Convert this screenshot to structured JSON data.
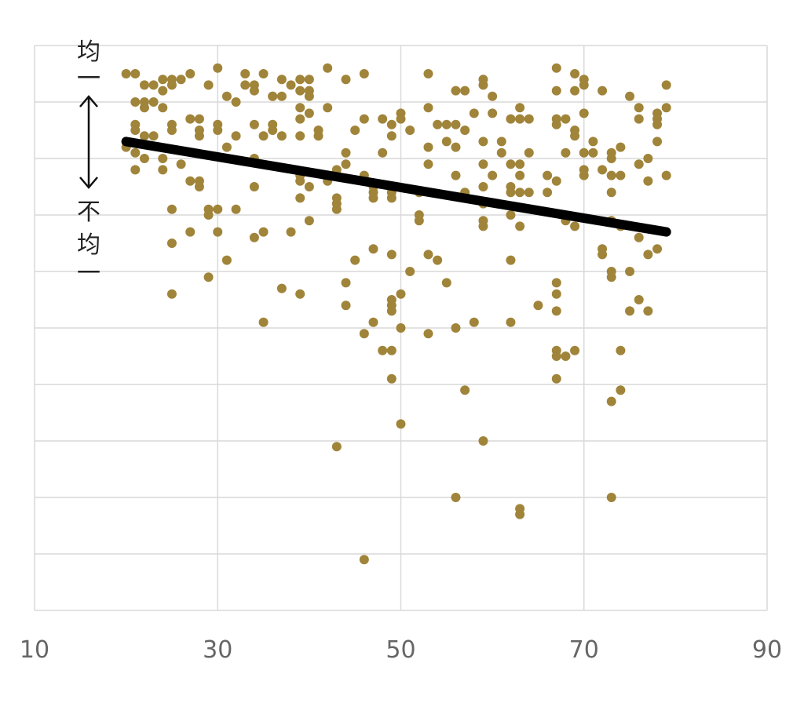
{
  "chart_data": {
    "type": "scatter",
    "title": "",
    "xlabel": "",
    "ylabel": "",
    "xlim": [
      10,
      90
    ],
    "ylim": [
      0,
      10
    ],
    "xticks": [
      "10",
      "30",
      "50",
      "70",
      "90"
    ],
    "grid": true,
    "y_annotation": {
      "top": "均一",
      "bottom": "不均一"
    },
    "colors": {
      "points": "#a0843a",
      "trendline": "#000000",
      "grid": "#d9d9d9",
      "tick_text": "#666666"
    },
    "trendline": {
      "x": [
        20,
        79
      ],
      "y": [
        8.3,
        6.7
      ]
    },
    "points": [
      [
        20,
        9.5
      ],
      [
        21,
        9.5
      ],
      [
        22,
        9.3
      ],
      [
        23,
        9.3
      ],
      [
        24,
        9.4
      ],
      [
        24,
        9.2
      ],
      [
        25,
        9.4
      ],
      [
        25,
        9.3
      ],
      [
        26,
        9.4
      ],
      [
        27,
        9.5
      ],
      [
        29,
        9.3
      ],
      [
        30,
        9.6
      ],
      [
        33,
        9.5
      ],
      [
        33,
        9.3
      ],
      [
        34,
        9.3
      ],
      [
        35,
        9.5
      ],
      [
        36,
        9.1
      ],
      [
        37,
        9.4
      ],
      [
        38,
        9.3
      ],
      [
        39,
        9.4
      ],
      [
        40,
        9.4
      ],
      [
        40,
        9.2
      ],
      [
        42,
        9.6
      ],
      [
        44,
        9.4
      ],
      [
        46,
        9.5
      ],
      [
        21,
        9.0
      ],
      [
        22,
        8.9
      ],
      [
        22,
        9.0
      ],
      [
        23,
        9.0
      ],
      [
        24,
        8.9
      ],
      [
        31,
        9.1
      ],
      [
        32,
        9.0
      ],
      [
        34,
        9.2
      ],
      [
        36,
        9.1
      ],
      [
        37,
        9.1
      ],
      [
        39,
        9.2
      ],
      [
        39,
        8.9
      ],
      [
        40,
        9.1
      ],
      [
        42,
        8.9
      ],
      [
        20,
        8.3
      ],
      [
        21,
        8.5
      ],
      [
        21,
        8.6
      ],
      [
        22,
        8.4
      ],
      [
        23,
        8.4
      ],
      [
        25,
        8.6
      ],
      [
        25,
        8.5
      ],
      [
        27,
        8.7
      ],
      [
        28,
        8.7
      ],
      [
        28,
        8.5
      ],
      [
        28,
        8.4
      ],
      [
        30,
        8.6
      ],
      [
        30,
        8.5
      ],
      [
        32,
        8.4
      ],
      [
        34,
        8.6
      ],
      [
        35,
        8.4
      ],
      [
        36,
        8.6
      ],
      [
        36,
        8.5
      ],
      [
        37,
        8.4
      ],
      [
        39,
        8.7
      ],
      [
        39,
        8.4
      ],
      [
        40,
        8.8
      ],
      [
        41,
        8.5
      ],
      [
        41,
        8.4
      ],
      [
        20,
        8.2
      ],
      [
        21,
        8.1
      ],
      [
        22,
        8.0
      ],
      [
        24,
        8.0
      ],
      [
        24,
        7.8
      ],
      [
        26,
        7.9
      ],
      [
        31,
        8.2
      ],
      [
        34,
        8.0
      ],
      [
        21,
        7.8
      ],
      [
        27,
        7.6
      ],
      [
        28,
        7.6
      ],
      [
        28,
        7.5
      ],
      [
        34,
        7.5
      ],
      [
        39,
        7.7
      ],
      [
        39,
        7.6
      ],
      [
        40,
        7.5
      ],
      [
        42,
        7.6
      ],
      [
        25,
        7.1
      ],
      [
        29,
        7.1
      ],
      [
        29,
        7.0
      ],
      [
        30,
        7.1
      ],
      [
        32,
        7.1
      ],
      [
        39,
        7.3
      ],
      [
        40,
        6.9
      ],
      [
        43,
        7.3
      ],
      [
        43,
        7.2
      ],
      [
        43,
        7.1
      ],
      [
        25,
        6.5
      ],
      [
        27,
        6.7
      ],
      [
        30,
        6.7
      ],
      [
        31,
        6.2
      ],
      [
        34,
        6.6
      ],
      [
        35,
        6.7
      ],
      [
        38,
        6.7
      ],
      [
        29,
        5.9
      ],
      [
        25,
        5.6
      ],
      [
        37,
        5.7
      ],
      [
        39,
        5.6
      ],
      [
        35,
        5.1
      ],
      [
        43,
        7.8
      ],
      [
        44,
        7.9
      ],
      [
        45,
        8.5
      ],
      [
        44,
        8.1
      ],
      [
        46,
        8.7
      ],
      [
        46,
        7.7
      ],
      [
        47,
        7.5
      ],
      [
        47,
        7.4
      ],
      [
        47,
        7.3
      ],
      [
        48,
        8.7
      ],
      [
        48,
        8.1
      ],
      [
        49,
        8.6
      ],
      [
        49,
        8.4
      ],
      [
        49,
        7.4
      ],
      [
        49,
        7.3
      ],
      [
        50,
        8.8
      ],
      [
        50,
        8.7
      ],
      [
        51,
        8.5
      ],
      [
        52,
        7.4
      ],
      [
        52,
        7.0
      ],
      [
        52,
        6.9
      ],
      [
        53,
        9.5
      ],
      [
        53,
        8.9
      ],
      [
        53,
        8.2
      ],
      [
        53,
        7.9
      ],
      [
        54,
        8.6
      ],
      [
        55,
        8.6
      ],
      [
        55,
        8.3
      ],
      [
        56,
        9.2
      ],
      [
        56,
        8.6
      ],
      [
        56,
        8.2
      ],
      [
        56,
        7.7
      ],
      [
        57,
        9.2
      ],
      [
        57,
        8.5
      ],
      [
        57,
        7.4
      ],
      [
        58,
        8.8
      ],
      [
        59,
        9.4
      ],
      [
        59,
        9.3
      ],
      [
        59,
        8.3
      ],
      [
        59,
        7.9
      ],
      [
        59,
        7.5
      ],
      [
        59,
        7.2
      ],
      [
        59,
        6.9
      ],
      [
        59,
        6.8
      ],
      [
        60,
        9.1
      ],
      [
        60,
        8.8
      ],
      [
        60,
        7.7
      ],
      [
        61,
        8.3
      ],
      [
        61,
        8.1
      ],
      [
        62,
        8.7
      ],
      [
        62,
        7.9
      ],
      [
        62,
        7.5
      ],
      [
        62,
        7.4
      ],
      [
        62,
        7.0
      ],
      [
        63,
        8.9
      ],
      [
        63,
        8.7
      ],
      [
        63,
        7.9
      ],
      [
        63,
        7.7
      ],
      [
        63,
        7.4
      ],
      [
        63,
        6.8
      ],
      [
        64,
        8.7
      ],
      [
        64,
        8.1
      ],
      [
        64,
        7.4
      ],
      [
        66,
        7.7
      ],
      [
        66,
        7.4
      ],
      [
        67,
        9.6
      ],
      [
        67,
        9.2
      ],
      [
        67,
        8.7
      ],
      [
        67,
        8.6
      ],
      [
        67,
        7.6
      ],
      [
        68,
        8.7
      ],
      [
        68,
        8.1
      ],
      [
        69,
        9.5
      ],
      [
        69,
        9.2
      ],
      [
        69,
        8.5
      ],
      [
        69,
        8.4
      ],
      [
        69,
        6.8
      ],
      [
        70,
        9.4
      ],
      [
        70,
        9.3
      ],
      [
        70,
        8.8
      ],
      [
        70,
        8.1
      ],
      [
        70,
        7.8
      ],
      [
        70,
        7.7
      ],
      [
        71,
        8.3
      ],
      [
        71,
        8.1
      ],
      [
        72,
        9.2
      ],
      [
        72,
        7.8
      ],
      [
        73,
        8.1
      ],
      [
        73,
        8.0
      ],
      [
        73,
        7.7
      ],
      [
        73,
        7.4
      ],
      [
        74,
        8.2
      ],
      [
        74,
        7.7
      ],
      [
        75,
        9.1
      ],
      [
        76,
        8.9
      ],
      [
        76,
        8.7
      ],
      [
        76,
        7.9
      ],
      [
        77,
        8.0
      ],
      [
        77,
        7.6
      ],
      [
        78,
        8.8
      ],
      [
        78,
        8.7
      ],
      [
        78,
        8.6
      ],
      [
        78,
        8.3
      ],
      [
        79,
        9.3
      ],
      [
        79,
        8.9
      ],
      [
        79,
        7.7
      ],
      [
        73,
        6.9
      ],
      [
        74,
        6.8
      ],
      [
        68,
        6.9
      ],
      [
        76,
        6.6
      ],
      [
        78,
        6.4
      ],
      [
        77,
        6.3
      ],
      [
        72,
        6.4
      ],
      [
        72,
        6.3
      ],
      [
        62,
        6.2
      ],
      [
        54,
        6.2
      ],
      [
        53,
        6.3
      ],
      [
        47,
        6.4
      ],
      [
        49,
        6.3
      ],
      [
        45,
        6.2
      ],
      [
        51,
        6.0
      ],
      [
        73,
        6.0
      ],
      [
        73,
        5.9
      ],
      [
        75,
        6.0
      ],
      [
        44,
        5.8
      ],
      [
        55,
        5.8
      ],
      [
        67,
        5.8
      ],
      [
        67,
        5.6
      ],
      [
        76,
        5.5
      ],
      [
        75,
        5.3
      ],
      [
        77,
        5.3
      ],
      [
        65,
        5.4
      ],
      [
        49,
        5.5
      ],
      [
        49,
        5.4
      ],
      [
        49,
        5.3
      ],
      [
        50,
        5.6
      ],
      [
        44,
        5.4
      ],
      [
        67,
        5.3
      ],
      [
        47,
        5.1
      ],
      [
        50,
        5.0
      ],
      [
        56,
        5.0
      ],
      [
        58,
        5.1
      ],
      [
        62,
        5.1
      ],
      [
        46,
        4.9
      ],
      [
        53,
        4.9
      ],
      [
        74,
        4.6
      ],
      [
        48,
        4.6
      ],
      [
        49,
        4.6
      ],
      [
        67,
        4.6
      ],
      [
        67,
        4.5
      ],
      [
        69,
        4.6
      ],
      [
        68,
        4.5
      ],
      [
        49,
        4.1
      ],
      [
        67,
        4.1
      ],
      [
        57,
        3.9
      ],
      [
        74,
        3.9
      ],
      [
        73,
        3.7
      ],
      [
        50,
        3.3
      ],
      [
        59,
        3.0
      ],
      [
        43,
        2.9
      ],
      [
        56,
        2.0
      ],
      [
        73,
        2.0
      ],
      [
        63,
        1.8
      ],
      [
        63,
        1.7
      ],
      [
        46,
        0.9
      ]
    ]
  }
}
